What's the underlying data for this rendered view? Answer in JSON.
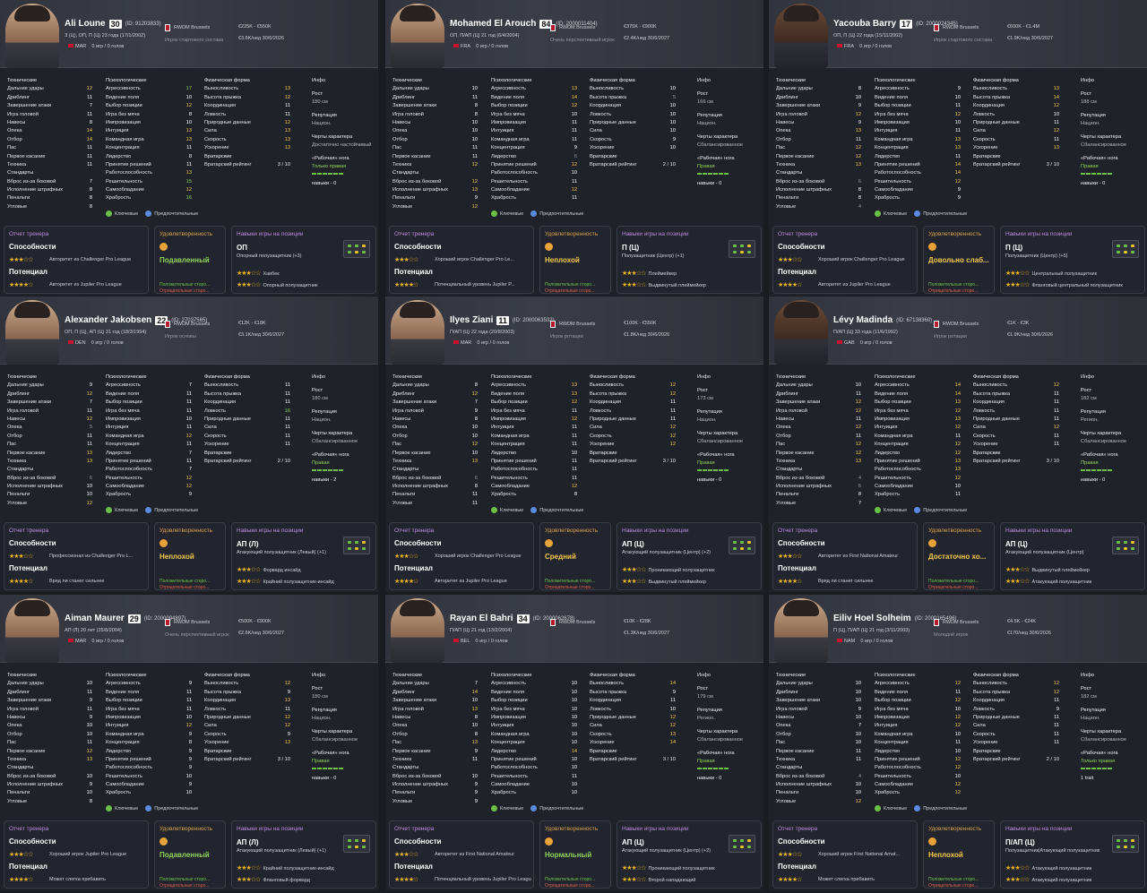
{
  "labels": {
    "technical": "Технические",
    "mental": "Психологические",
    "physical": "Физическая форма",
    "standards": "Стандарты",
    "goalkeeping": "Вратарские",
    "keeper_rating": "Вратарский рейтинг",
    "info": "Инфо",
    "height": "Рост",
    "reputation": "Репутация",
    "traits": "Черты характера",
    "foot": "«Рабочая» нога",
    "skills_prefix": "навыки",
    "key": "Ключевые",
    "preferred": "Предпочтительные",
    "coach_report": "Отчет тренера",
    "ability": "Способности",
    "potential": "Потенциал",
    "satisfaction": "Удовлетворенность",
    "positional": "Навыки игры на позиции",
    "pos_strengths": "Положительные сторо...",
    "neg_strengths": "Отрицательные сторо...",
    "apps": "0 игр / 0 голов",
    "club": "RWDM Brussels"
  },
  "tech_names": [
    "Дальние удары",
    "Дриблинг",
    "Завершение атаки",
    "Игра головой",
    "Навесы",
    "Опека",
    "Отбор",
    "Пас",
    "Первое касание",
    "Техника"
  ],
  "std_names": [
    "Вброс из-за боковой",
    "Исполнение штрафных",
    "Пенальти",
    "Угловые"
  ],
  "mental_names": [
    "Агрессивность",
    "Видение поля",
    "Выбор позиции",
    "Игра без мяча",
    "Импровизация",
    "Интуиция",
    "Командная игра",
    "Концентрация",
    "Лидерство",
    "Принятие решений",
    "Работоспособность",
    "Решительность",
    "Самообладание",
    "Храбрость"
  ],
  "phys_names": [
    "Выносливость",
    "Высота прыжка",
    "Координация",
    "Ловкость",
    "Природные данные",
    "Сила",
    "Скорость",
    "Ускорение"
  ],
  "players": [
    {
      "name": "Ali Loune",
      "num": "30",
      "id": "(ID: 91203833)",
      "line1": "З (Ц), ОП, П (Ц)   23 года (17/1/2002)",
      "nat": "MAR",
      "role": "Игрок стартового состава",
      "val1": "€225K - €550K",
      "val2": "€3.6K/нед  30/6/2026",
      "tech": [
        12,
        11,
        7,
        11,
        8,
        14,
        14,
        11,
        11,
        11
      ],
      "std": [
        7,
        8,
        8,
        8
      ],
      "mental": [
        17,
        10,
        12,
        8,
        10,
        13,
        13,
        11,
        8,
        11,
        13,
        15,
        12,
        16
      ],
      "phys": [
        13,
        12,
        11,
        11,
        12,
        13,
        13,
        13
      ],
      "keeper": "3 / 10",
      "height": "180 см",
      "rep": "Национ.",
      "trait": "Достаточно настойчивый",
      "foot": "Только правая",
      "skills": "навыки - 0",
      "ability_desc": "Авторитет из Challenger Pro League",
      "potential_desc": "Авторитет из Jupiler Pro League",
      "mood": "Подавленный",
      "pos": "ОП",
      "pos_sub": "Опорный полузащитник (+3)",
      "r1": "Хавбек",
      "r2": "Опорный полузащитник"
    },
    {
      "name": "Mohamed El Arouch",
      "num": "84",
      "id": "(ID: 2000011404)",
      "line1": "ОП, П/АП (Ц)   21 год (6/4/2004)",
      "nat": "FRA",
      "role": "Очень перспективный игрок",
      "val1": "€375K - €900K",
      "val2": "€2.4K/нед  30/6/2027",
      "tech": [
        10,
        11,
        8,
        8,
        10,
        10,
        10,
        11,
        11,
        12
      ],
      "std": [
        12,
        13,
        9,
        12
      ],
      "mental": [
        13,
        14,
        12,
        10,
        11,
        11,
        11,
        9,
        6,
        12,
        10,
        11,
        12,
        11
      ],
      "phys": [
        10,
        5,
        10,
        10,
        10,
        10,
        9,
        10
      ],
      "keeper": "2 / 10",
      "height": "166 см",
      "rep": "Национ.",
      "trait": "Сбалансированное",
      "foot": "Правая",
      "skills": "навыки - 0",
      "ability_desc": "Хороший игрок Challenger Pro Le...",
      "potential_desc": "Потенциальный уровень Jupiler P...",
      "mood": "Неплохой",
      "pos": "П (Ц)",
      "pos_sub": "Полузащитник (Центр) (+1)",
      "r1": "Плеймейкер",
      "r2": "Выдвинутый плеймейкер"
    },
    {
      "name": "Yacouba Barry",
      "num": "17",
      "id": "(ID: 2000024345)",
      "line1": "ОП, П (Ц)   22 года (15/11/2002)",
      "nat": "FRA",
      "role": "Игрок стартового состава",
      "val1": "€600K - €1.4M",
      "val2": "€1.9K/нед  30/6/2027",
      "tech": [
        8,
        10,
        9,
        12,
        9,
        13,
        11,
        12,
        12,
        13
      ],
      "std": [
        6,
        8,
        8,
        4
      ],
      "mental": [
        9,
        10,
        11,
        12,
        10,
        11,
        13,
        13,
        11,
        14,
        14,
        12,
        9,
        9
      ],
      "phys": [
        13,
        14,
        12,
        10,
        11,
        12,
        11,
        13
      ],
      "keeper": "3 / 10",
      "height": "188 см",
      "rep": "Национ.",
      "trait": "Сбалансированное",
      "foot": "Правая",
      "skills": "навыки - 0",
      "ability_desc": "Хороший игрок Challenger Pro League",
      "potential_desc": "Авторитет из Jupiler Pro League",
      "mood": "Довольно слаб...",
      "pos": "П (Ц)",
      "pos_sub": "Полузащитник (Центр) (+5)",
      "r1": "Центральный полузащитник",
      "r2": "Фланговый центральный полузащитник"
    },
    {
      "name": "Alexander Jakobsen",
      "num": "22",
      "id": "(ID: 27037565)",
      "line1": "ОП, П (Ц), АП (Ц)   31 год (18/3/1994)",
      "nat": "DEN",
      "role": "Игрок основы",
      "val1": "€12K - €18K",
      "val2": "€3.1K/нед  30/6/2027",
      "tech": [
        9,
        12,
        7,
        11,
        12,
        5,
        11,
        11,
        13,
        13
      ],
      "std": [
        6,
        10,
        10,
        12
      ],
      "mental": [
        7,
        11,
        11,
        11,
        10,
        11,
        12,
        11,
        7,
        11,
        7,
        12,
        12,
        9
      ],
      "phys": [
        11,
        11,
        11,
        16,
        11,
        11,
        11,
        11
      ],
      "keeper": "2 / 10",
      "height": "180 см",
      "rep": "Национ.",
      "trait": "Сбалансированное",
      "foot": "Правая",
      "skills": "навыки - 2",
      "ability_desc": "Профессионал из Challenger Pro L...",
      "potential_desc": "Вряд ли станет сильнее",
      "mood": "Неплохой",
      "pos": "АП (Л)",
      "pos_sub": "Атакующий полузащитник (Левый) (+1)",
      "r1": "Форвард инсайд",
      "r2": "Крайний полузащитник-инсайд"
    },
    {
      "name": "Ilyes Ziani",
      "num": "11",
      "id": "(ID: 2000063532)",
      "line1": "П/АП (Ц)   22 года (20/8/2003)",
      "nat": "MAR",
      "role": "Игрок ротации",
      "val1": "€100K - €550K",
      "val2": "€1.8K/нед  30/6/2026",
      "tech": [
        8,
        12,
        7,
        9,
        8,
        10,
        10,
        12,
        10,
        13
      ],
      "std": [
        6,
        8,
        11,
        11
      ],
      "mental": [
        13,
        13,
        12,
        11,
        12,
        11,
        11,
        11,
        10,
        11,
        11,
        11,
        12,
        8
      ],
      "phys": [
        12,
        12,
        11,
        11,
        11,
        12,
        12,
        12
      ],
      "keeper": "3 / 10",
      "height": "173 см",
      "rep": "Национ.",
      "trait": "Сбалансированное",
      "foot": "Правая",
      "skills": "навыки - 0",
      "ability_desc": "Хороший игрок Challenger Pro League",
      "potential_desc": "Авторитет из Jupiler Pro League",
      "mood": "Средний",
      "pos": "АП (Ц)",
      "pos_sub": "Атакующий полузащитник (Центр) (+2)",
      "r1": "Проникающий полузащитник",
      "r2": "Выдвинутый плеймейкер"
    },
    {
      "name": "Lévy Madinda",
      "num": "",
      "id": "(ID: 67138360)",
      "line1": "П/АП (Ц)   33 года (11/6/1992)",
      "nat": "GAB",
      "role": "Игрок ротации",
      "val1": "€1K - €3K",
      "val2": "€1.9K/нед  30/6/2026",
      "tech": [
        10,
        11,
        12,
        12,
        11,
        12,
        11,
        12,
        12,
        13
      ],
      "std": [
        4,
        6,
        8,
        7
      ],
      "mental": [
        14,
        14,
        13,
        12,
        13,
        12,
        11,
        12,
        12,
        13,
        13,
        12,
        10,
        11
      ],
      "phys": [
        12,
        11,
        11,
        11,
        11,
        12,
        11,
        11
      ],
      "keeper": "3 / 10",
      "height": "182 см",
      "rep": "Регион.",
      "trait": "Сбалансированное",
      "foot": "Правая",
      "skills": "навыки - 0",
      "ability_desc": "Авторитет из First National Amateur",
      "potential_desc": "Вряд ли станет сильнее",
      "mood": "Достаточно хо...",
      "pos": "АП (Ц)",
      "pos_sub": "Атакующий полузащитник (Центр)",
      "r1": "Выдвинутый плеймейкер",
      "r2": "Атакующий полузащитник"
    },
    {
      "name": "Aiman Maurer",
      "num": "29",
      "id": "(ID: 2000094897)",
      "line1": "АП (Л)   20 лет (25/8/2004)",
      "nat": "MAR",
      "role": "Очень перспективный игрок",
      "val1": "€500K - €900K",
      "val2": "€2.6K/нед  30/6/2027",
      "tech": [
        10,
        11,
        9,
        11,
        9,
        10,
        10,
        11,
        12,
        13
      ],
      "std": [
        10,
        9,
        10,
        8
      ],
      "mental": [
        9,
        11,
        11,
        11,
        10,
        12,
        9,
        8,
        9,
        9,
        9,
        10,
        9,
        10
      ],
      "phys": [
        12,
        9,
        13,
        11,
        12,
        12,
        9,
        13
      ],
      "keeper": "3 / 10",
      "height": "180 см",
      "rep": "Национ.",
      "trait": "Сбалансированное",
      "foot": "Правая",
      "skills": "навыки - 0",
      "ability_desc": "Хороший игрок Jupiler Pro League",
      "potential_desc": "Может слегка прибавить",
      "mood": "Подавленный",
      "pos": "АП (Л)",
      "pos_sub": "Атакующий полузащитник (Левый) (+1)",
      "r1": "Крайний полузащитник-инсайд",
      "r2": "Фланговый форвард"
    },
    {
      "name": "Rayan El Bahri",
      "num": "34",
      "id": "(ID: 2000062678)",
      "line1": "П/АП (Ц)   21 год (13/2/2004)",
      "nat": "BEL",
      "role": "",
      "val1": "€10K - €28K",
      "val2": "€1.3K/нед  30/6/2027",
      "tech": [
        7,
        14,
        10,
        13,
        8,
        10,
        8,
        13,
        9,
        11
      ],
      "std": [
        10,
        9,
        9,
        9
      ],
      "mental": [
        10,
        10,
        10,
        10,
        10,
        10,
        10,
        10,
        14,
        10,
        10,
        11,
        10,
        10
      ],
      "phys": [
        14,
        9,
        11,
        10,
        12,
        12,
        13,
        14
      ],
      "keeper": "3 / 10",
      "height": "179 см",
      "rep": "Регион.",
      "trait": "Сбалансированное",
      "foot": "Правая",
      "skills": "навыки - 0",
      "ability_desc": "Авторитет из First National Amateur",
      "potential_desc": "Потенциальный уровень Jupiler Pro League",
      "mood": "Нормальный",
      "pos": "АП (Ц)",
      "pos_sub": "Атакующий полузащитник (Центр) (+2)",
      "r1": "Проникающий полузащитник",
      "r2": "Второй нападающий"
    },
    {
      "name": "Eiliv Hoel Solheim",
      "num": "",
      "id": "(ID: 2000165496)",
      "line1": "П (Ц), П/АП (Ц)   21 год (3/11/2003)",
      "nat": "NAM",
      "role": "Молодой игрок",
      "val1": "€4.5K - €24K",
      "val2": "€170/нед  30/6/2026",
      "tech": [
        10,
        10,
        10,
        9,
        10,
        7,
        10,
        10,
        11,
        11
      ],
      "std": [
        4,
        10,
        10,
        12
      ],
      "mental": [
        12,
        11,
        12,
        10,
        12,
        12,
        10,
        11,
        10,
        12,
        12,
        10,
        12,
        12
      ],
      "phys": [
        12,
        12,
        11,
        9,
        11,
        11,
        11,
        11
      ],
      "keeper": "2 / 10",
      "height": "182 см",
      "rep": "Национ.",
      "trait": "Сбалансированное",
      "foot": "Только правая",
      "skills": "1 trait",
      "ability_desc": "Хороший игрок First National Amat...",
      "potential_desc": "Может слегка прибавить",
      "mood": "Неплохой",
      "pos": "П/АП (Ц)",
      "pos_sub": "Полузащитник|Атакующий полузащитник",
      "r1": "Атакующий полузащитник",
      "r2": "Атакующий полузащитник"
    }
  ]
}
